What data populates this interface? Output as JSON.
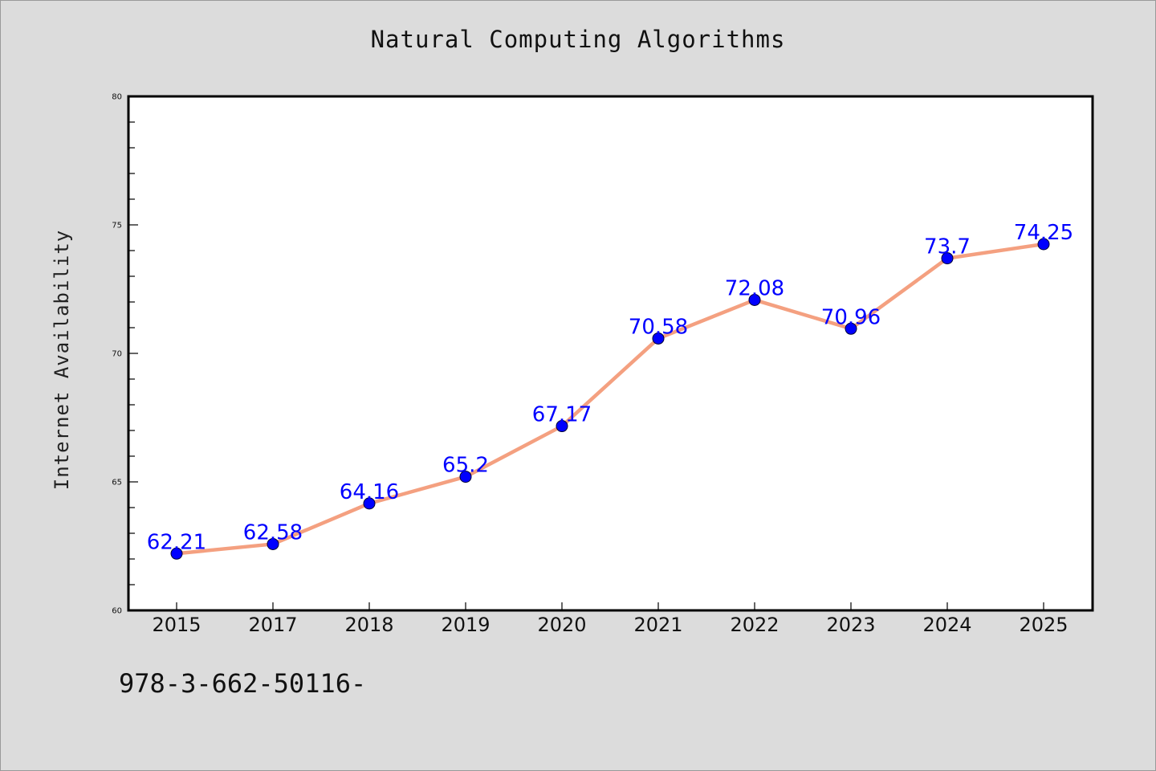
{
  "chart_data": {
    "type": "line",
    "title": "Natural Computing Algorithms",
    "xlabel": "",
    "ylabel": "Internet Availability",
    "categories": [
      "2015",
      "2017",
      "2018",
      "2019",
      "2020",
      "2021",
      "2022",
      "2023",
      "2024",
      "2025"
    ],
    "values": [
      62.21,
      62.58,
      64.16,
      65.2,
      67.17,
      70.58,
      72.08,
      70.96,
      73.7,
      74.25
    ],
    "data_labels": [
      "62.21",
      "62.58",
      "64.16",
      "65.2",
      "67.17",
      "70.58",
      "72.08",
      "70.96",
      "73.7",
      "74.25"
    ],
    "ylim": [
      60,
      80
    ],
    "yticks": [
      60,
      65,
      70,
      75,
      80
    ],
    "grid": false,
    "line_color": "#f4a080",
    "marker_color": "#0000ff",
    "label_color": "#0000ff"
  },
  "footnote": "978-3-662-50116-"
}
